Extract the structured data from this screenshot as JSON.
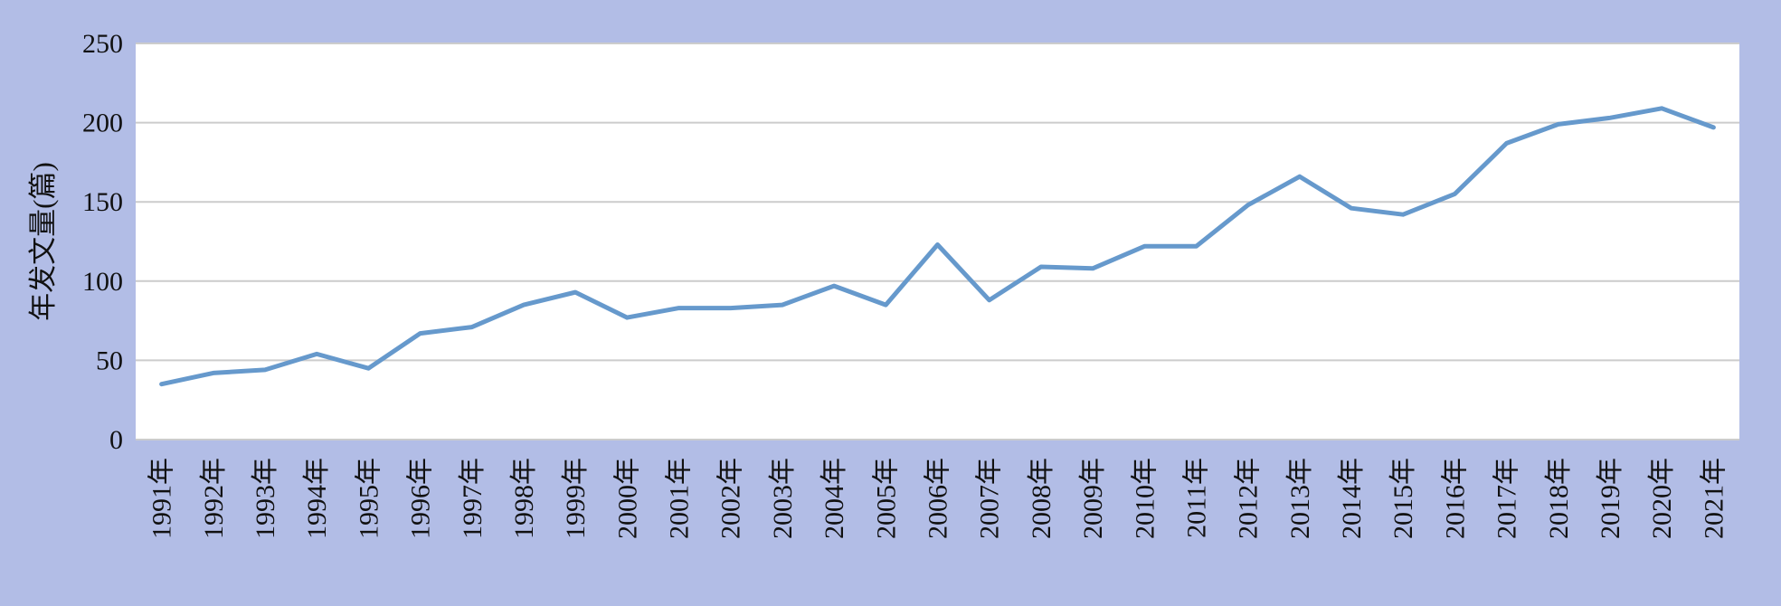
{
  "chart_data": {
    "type": "line",
    "title": "",
    "xlabel": "",
    "ylabel": "年发文量(篇)",
    "ylim": [
      0,
      250
    ],
    "yticks": [
      0,
      50,
      100,
      150,
      200,
      250
    ],
    "grid": true,
    "categories": [
      "1991年",
      "1992年",
      "1993年",
      "1994年",
      "1995年",
      "1996年",
      "1997年",
      "1998年",
      "1999年",
      "2000年",
      "2001年",
      "2002年",
      "2003年",
      "2004年",
      "2005年",
      "2006年",
      "2007年",
      "2008年",
      "2009年",
      "2010年",
      "2011年",
      "2012年",
      "2013年",
      "2014年",
      "2015年",
      "2016年",
      "2017年",
      "2018年",
      "2019年",
      "2020年",
      "2021年"
    ],
    "series": [
      {
        "values": [
          35,
          42,
          44,
          54,
          45,
          67,
          71,
          85,
          93,
          77,
          83,
          83,
          85,
          97,
          85,
          123,
          88,
          109,
          108,
          122,
          122,
          148,
          166,
          146,
          142,
          155,
          187,
          199,
          203,
          209,
          197
        ],
        "color": "#6699cc"
      }
    ],
    "colors": {
      "background": "#b2bde6",
      "plot_area": "#ffffff",
      "grid": "#cccccc"
    }
  }
}
